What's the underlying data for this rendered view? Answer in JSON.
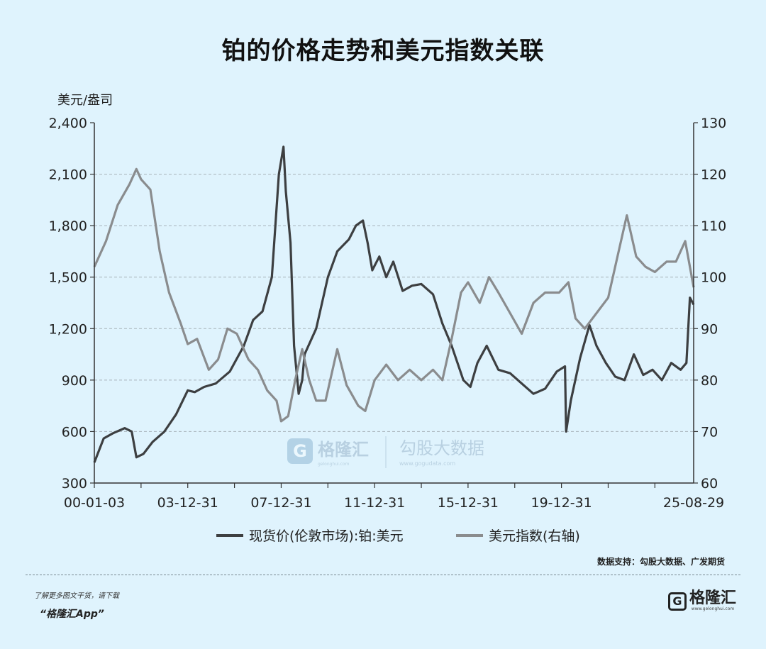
{
  "title": "铂的价格走势和美元指数关联",
  "chart_data": {
    "type": "line",
    "title": "铂的价格走势和美元指数关联",
    "left_axis_unit": "美元/盎司",
    "ylim_left": [
      300,
      2400
    ],
    "yticks_left": [
      "300",
      "600",
      "900",
      "1,200",
      "1,500",
      "1,800",
      "2,100",
      "2,400"
    ],
    "ylim_right": [
      60,
      130
    ],
    "yticks_right": [
      "60",
      "70",
      "80",
      "90",
      "100",
      "110",
      "120",
      "130"
    ],
    "xlim": [
      2000.0,
      2025.66
    ],
    "xtick_labels": [
      {
        "x": 2000.0,
        "label": "00-01-03"
      },
      {
        "x": 2004.0,
        "label": "03-12-31"
      },
      {
        "x": 2008.0,
        "label": "07-12-31"
      },
      {
        "x": 2012.0,
        "label": "11-12-31"
      },
      {
        "x": 2016.0,
        "label": "15-12-31"
      },
      {
        "x": 2020.0,
        "label": "19-12-31"
      },
      {
        "x": 2025.66,
        "label": "25-08-29"
      }
    ],
    "grid": true,
    "legend_position": "bottom",
    "series": [
      {
        "name": "现货价(伦敦市场):铂:美元",
        "axis": "left",
        "color": "#3d3f41",
        "x": [
          2000.0,
          2000.4,
          2000.8,
          2001.3,
          2001.6,
          2001.8,
          2002.1,
          2002.5,
          2003.0,
          2003.5,
          2004.0,
          2004.3,
          2004.7,
          2005.2,
          2005.8,
          2006.4,
          2006.8,
          2007.2,
          2007.6,
          2007.9,
          2008.1,
          2008.2,
          2008.4,
          2008.55,
          2008.75,
          2008.9,
          2009.0,
          2009.5,
          2010.0,
          2010.4,
          2010.9,
          2011.2,
          2011.5,
          2011.7,
          2011.9,
          2012.2,
          2012.5,
          2012.8,
          2013.2,
          2013.6,
          2014.0,
          2014.5,
          2014.9,
          2015.3,
          2015.8,
          2016.1,
          2016.4,
          2016.8,
          2017.3,
          2017.8,
          2018.3,
          2018.8,
          2019.3,
          2019.8,
          2020.15,
          2020.2,
          2020.4,
          2020.8,
          2021.2,
          2021.5,
          2021.9,
          2022.3,
          2022.7,
          2023.1,
          2023.5,
          2023.9,
          2024.3,
          2024.7,
          2025.1,
          2025.35,
          2025.5,
          2025.66
        ],
        "values": [
          420,
          560,
          590,
          620,
          600,
          450,
          470,
          540,
          600,
          700,
          840,
          830,
          860,
          880,
          950,
          1100,
          1250,
          1300,
          1500,
          2100,
          2260,
          2000,
          1700,
          1100,
          820,
          900,
          1050,
          1200,
          1500,
          1650,
          1720,
          1800,
          1830,
          1700,
          1540,
          1620,
          1500,
          1590,
          1420,
          1450,
          1460,
          1400,
          1230,
          1100,
          900,
          860,
          1000,
          1100,
          960,
          940,
          880,
          820,
          850,
          950,
          980,
          600,
          780,
          1030,
          1220,
          1100,
          1000,
          920,
          900,
          1050,
          930,
          960,
          900,
          1000,
          960,
          1000,
          1380,
          1340
        ]
      },
      {
        "name": "美元指数(右轴)",
        "axis": "right",
        "color": "#8a8c8e",
        "x": [
          2000.0,
          2000.5,
          2001.0,
          2001.5,
          2001.8,
          2002.0,
          2002.4,
          2002.8,
          2003.2,
          2003.7,
          2004.0,
          2004.4,
          2004.9,
          2005.3,
          2005.7,
          2006.1,
          2006.6,
          2007.0,
          2007.4,
          2007.8,
          2008.0,
          2008.3,
          2008.6,
          2008.9,
          2009.2,
          2009.5,
          2009.9,
          2010.4,
          2010.8,
          2011.3,
          2011.6,
          2012.0,
          2012.5,
          2013.0,
          2013.5,
          2014.0,
          2014.5,
          2014.9,
          2015.3,
          2015.7,
          2016.0,
          2016.5,
          2016.9,
          2017.3,
          2017.8,
          2018.3,
          2018.8,
          2019.3,
          2019.9,
          2020.3,
          2020.6,
          2021.0,
          2021.5,
          2022.0,
          2022.4,
          2022.8,
          2023.2,
          2023.6,
          2024.0,
          2024.5,
          2024.9,
          2025.3,
          2025.66
        ],
        "values": [
          102,
          107,
          114,
          118,
          121,
          119,
          117,
          105,
          97,
          91,
          87,
          88,
          82,
          84,
          90,
          89,
          84,
          82,
          78,
          76,
          72,
          73,
          80,
          86,
          80,
          76,
          76,
          86,
          79,
          75,
          74,
          80,
          83,
          80,
          82,
          80,
          82,
          80,
          88,
          97,
          99,
          95,
          100,
          97,
          93,
          89,
          95,
          97,
          97,
          99,
          92,
          90,
          93,
          96,
          104,
          112,
          104,
          102,
          101,
          103,
          103,
          107,
          98
        ]
      }
    ]
  },
  "watermark": {
    "brand1": "格隆汇",
    "brand1_url": "gelonghui.com",
    "brand2": "勾股大数据",
    "brand2_url": "www.gogudata.com"
  },
  "source": "数据支持：勾股大数据、广发期货",
  "footer": {
    "promo_line1": "了解更多图文干货，请下载",
    "promo_line2": "“格隆汇App”",
    "logo_text": "格隆汇",
    "logo_url": "www.gelonghui.com"
  },
  "icons": {
    "logo_icon": "g-square-icon"
  }
}
